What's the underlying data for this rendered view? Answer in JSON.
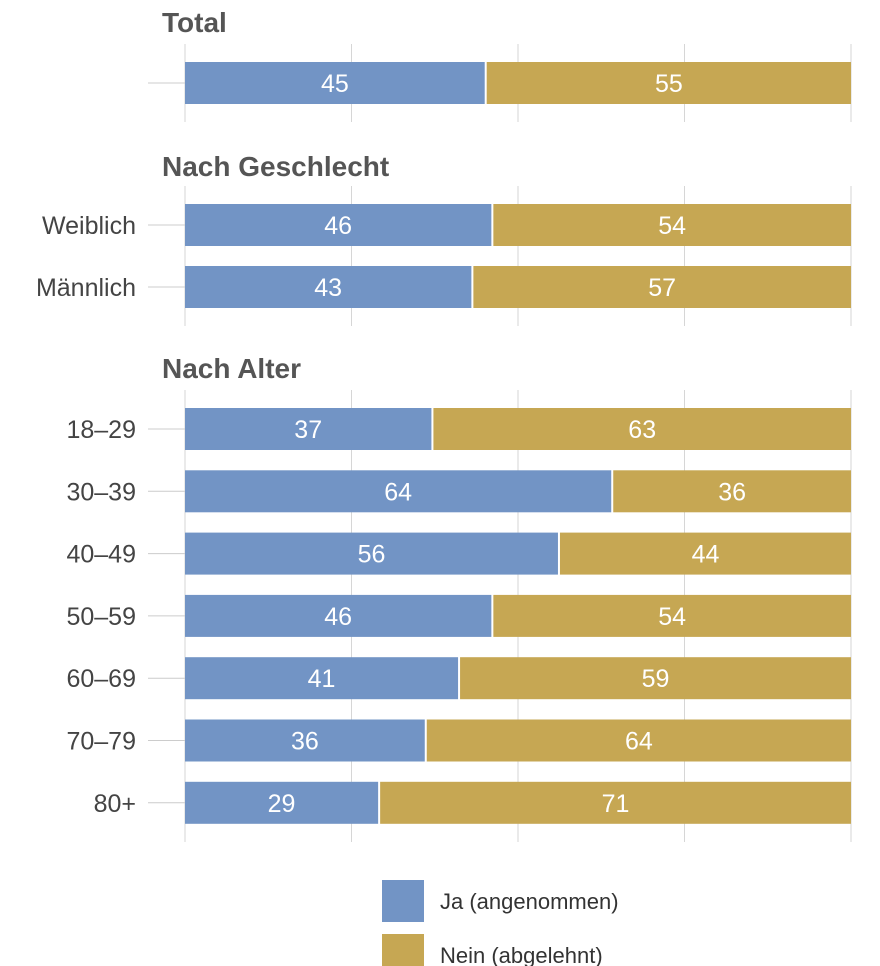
{
  "chart_data": {
    "type": "bar",
    "orientation": "horizontal",
    "stacked": true,
    "xlim": [
      0,
      100
    ],
    "grid": true,
    "legend_position": "bottom",
    "colors": {
      "ja": "#7294c5",
      "nein": "#c6a753"
    },
    "groups": [
      {
        "title": "Total",
        "rows": [
          {
            "label": "",
            "ja": 45,
            "nein": 55
          }
        ]
      },
      {
        "title": "Nach Geschlecht",
        "rows": [
          {
            "label": "Weiblich",
            "ja": 46,
            "nein": 54
          },
          {
            "label": "Männlich",
            "ja": 43,
            "nein": 57
          }
        ]
      },
      {
        "title": "Nach Alter",
        "rows": [
          {
            "label": "18–29",
            "ja": 37,
            "nein": 63
          },
          {
            "label": "30–39",
            "ja": 64,
            "nein": 36
          },
          {
            "label": "40–49",
            "ja": 56,
            "nein": 44
          },
          {
            "label": "50–59",
            "ja": 46,
            "nein": 54
          },
          {
            "label": "60–69",
            "ja": 41,
            "nein": 59
          },
          {
            "label": "70–79",
            "ja": 36,
            "nein": 64
          },
          {
            "label": "80+",
            "ja": 29,
            "nein": 71
          }
        ]
      }
    ],
    "series": [
      {
        "key": "ja",
        "name": "Ja (angenommen)"
      },
      {
        "key": "nein",
        "name": "Nein (abgelehnt)"
      }
    ]
  }
}
